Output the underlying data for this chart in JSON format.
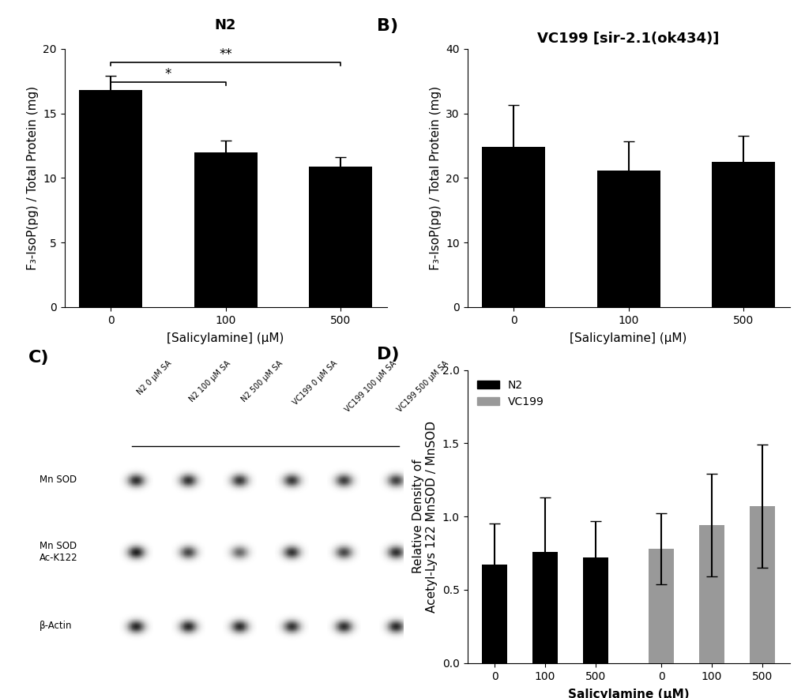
{
  "panel_A": {
    "title": "N2",
    "xlabel": "[Salicylamine] (μM)",
    "ylabel": "F₃-IsoP(pg) / Total Protein (mg)",
    "categories": [
      "0",
      "100",
      "500"
    ],
    "values": [
      16.8,
      12.0,
      10.9
    ],
    "errors": [
      1.1,
      0.9,
      0.7
    ],
    "ylim": [
      0,
      20
    ],
    "yticks": [
      0,
      5,
      10,
      15,
      20
    ],
    "bar_color": "#000000"
  },
  "panel_B": {
    "title": "VC199 [sir-2.1(ok434)]",
    "xlabel": "[Salicylamine] (μM)",
    "ylabel": "F₃-IsoP(pg) / Total Protein (mg)",
    "categories": [
      "0",
      "100",
      "500"
    ],
    "values": [
      24.8,
      21.2,
      22.5
    ],
    "errors": [
      6.5,
      4.5,
      4.0
    ],
    "ylim": [
      0,
      40
    ],
    "yticks": [
      0,
      10,
      20,
      30,
      40
    ],
    "bar_color": "#000000"
  },
  "panel_D": {
    "xlabel": "Salicylamine (μM)",
    "ylabel": "Relative Density of\nAcetyl-Lys 122 MnSOD / MnSOD",
    "values_N2": [
      0.67,
      0.76,
      0.72
    ],
    "errors_N2": [
      0.28,
      0.37,
      0.25
    ],
    "values_VC199": [
      0.78,
      0.94,
      1.07
    ],
    "errors_VC199": [
      0.24,
      0.35,
      0.42
    ],
    "ylim": [
      0,
      2.0
    ],
    "yticks": [
      0.0,
      0.5,
      1.0,
      1.5,
      2.0
    ],
    "color_N2": "#000000",
    "color_VC199": "#999999"
  },
  "label_fontsize": 16,
  "title_fontsize": 13,
  "axis_fontsize": 11,
  "tick_fontsize": 10,
  "background_color": "#ffffff"
}
